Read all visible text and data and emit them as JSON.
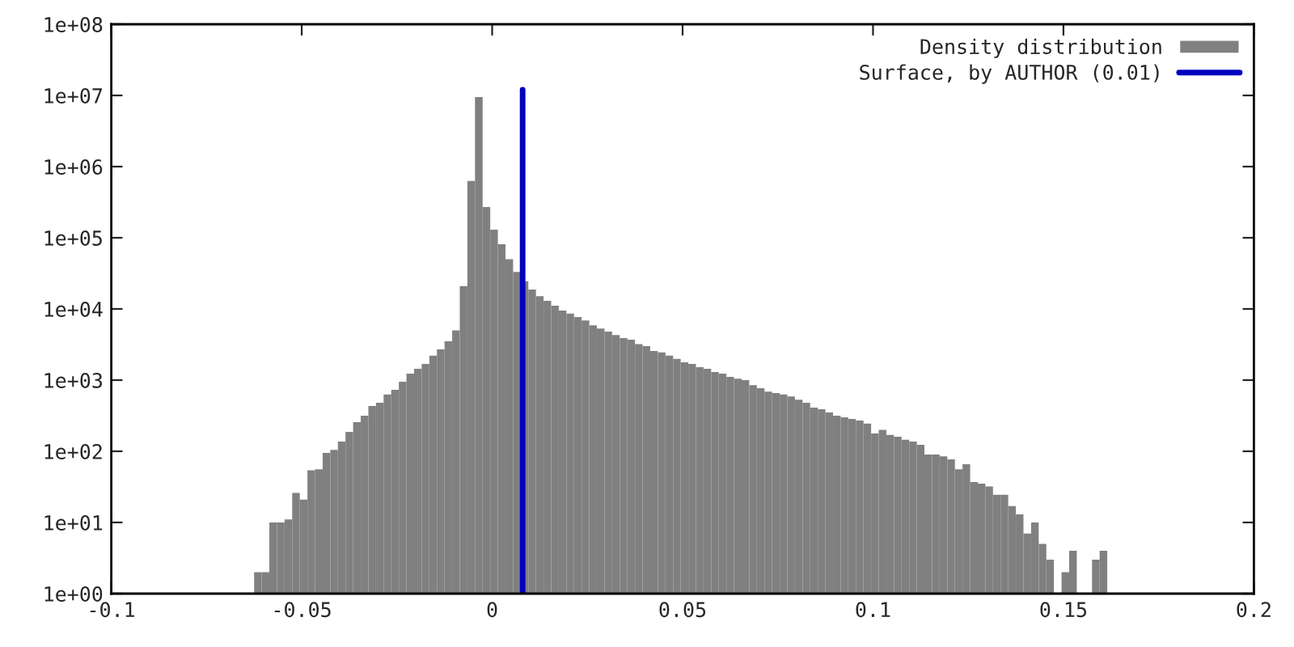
{
  "chart_data": {
    "type": "histogram",
    "bins": [
      -0.0625,
      -0.0605,
      -0.0585,
      -0.0565,
      -0.0545,
      -0.0525,
      -0.0505,
      -0.0485,
      -0.0465,
      -0.0445,
      -0.0425,
      -0.0405,
      -0.0385,
      -0.0365,
      -0.0345,
      -0.0325,
      -0.0305,
      -0.0285,
      -0.0265,
      -0.0245,
      -0.0225,
      -0.0205,
      -0.0185,
      -0.0165,
      -0.0145,
      -0.0125,
      -0.0105,
      -0.0085,
      -0.0065,
      -0.0045,
      -0.0025,
      -0.0005,
      0.0015,
      0.0035,
      0.0055,
      0.0075,
      0.0095,
      0.0115,
      0.0135,
      0.0155,
      0.0175,
      0.0195,
      0.0215,
      0.0235,
      0.0255,
      0.0275,
      0.0295,
      0.0315,
      0.0335,
      0.0355,
      0.0375,
      0.0395,
      0.0415,
      0.0435,
      0.0455,
      0.0475,
      0.0495,
      0.0515,
      0.0535,
      0.0555,
      0.0575,
      0.0595,
      0.0615,
      0.0635,
      0.0655,
      0.0675,
      0.0695,
      0.0715,
      0.0735,
      0.0755,
      0.0775,
      0.0795,
      0.0815,
      0.0835,
      0.0855,
      0.0875,
      0.0895,
      0.0915,
      0.0935,
      0.0955,
      0.0975,
      0.0995,
      0.1015,
      0.1035,
      0.1055,
      0.1075,
      0.1095,
      0.1115,
      0.1135,
      0.1155,
      0.1175,
      0.1195,
      0.1215,
      0.1235,
      0.1255,
      0.1275,
      0.1295,
      0.1315,
      0.1335,
      0.1355,
      0.1375,
      0.1395,
      0.1415,
      0.1435,
      0.1455,
      0.1475,
      0.1495,
      0.1515,
      0.1535,
      0.1555,
      0.1575,
      0.1595,
      0.1615
    ],
    "series": [
      {
        "name": "Density distribution",
        "type": "histogram",
        "color": "#808080",
        "values": [
          2,
          2,
          10,
          10,
          11,
          26,
          21,
          54,
          56,
          95,
          105,
          137,
          187,
          257,
          316,
          433,
          480,
          630,
          730,
          950,
          1230,
          1440,
          1690,
          2200,
          2700,
          3500,
          5000,
          21000,
          630000,
          9500000,
          270000,
          130000,
          81000,
          50000,
          33000,
          24500,
          18700,
          15100,
          13000,
          11100,
          9500,
          8600,
          7700,
          6900,
          5900,
          5300,
          4800,
          4300,
          3900,
          3700,
          3200,
          3000,
          2570,
          2450,
          2200,
          1990,
          1780,
          1690,
          1520,
          1440,
          1300,
          1230,
          1110,
          1050,
          1000,
          850,
          770,
          690,
          660,
          630,
          590,
          530,
          480,
          410,
          390,
          350,
          316,
          300,
          285,
          270,
          245,
          178,
          200,
          170,
          160,
          145,
          137,
          123,
          90,
          90,
          85,
          77,
          56,
          66,
          37,
          35,
          32,
          24.5,
          24.5,
          17,
          13,
          7,
          10,
          5,
          3,
          null,
          2,
          4,
          null,
          null,
          3,
          4
        ]
      },
      {
        "name": "Surface, by AUTHOR (0.01)",
        "type": "line",
        "color": "#0000c0",
        "x": [
          0.008,
          0.008
        ],
        "values": [
          1,
          12000000
        ]
      }
    ],
    "log": "y",
    "legend": "top right",
    "xlim": [
      -0.1,
      0.2
    ],
    "xticks": [
      -0.1,
      -0.05,
      0,
      0.05,
      0.1,
      0.15,
      0.2
    ],
    "ylim": [
      1,
      100000000
    ],
    "yticks": [
      {
        "value": 1,
        "label": "1e+00"
      },
      {
        "value": 10,
        "label": "1e+01"
      },
      {
        "value": 100,
        "label": "1e+02"
      },
      {
        "value": 1000,
        "label": "1e+03"
      },
      {
        "value": 10000,
        "label": "1e+04"
      },
      {
        "value": 100000,
        "label": "1e+05"
      },
      {
        "value": 1000000,
        "label": "1e+06"
      },
      {
        "value": 10000000,
        "label": "1e+07"
      },
      {
        "value": 100000000,
        "label": "1e+08"
      }
    ]
  }
}
